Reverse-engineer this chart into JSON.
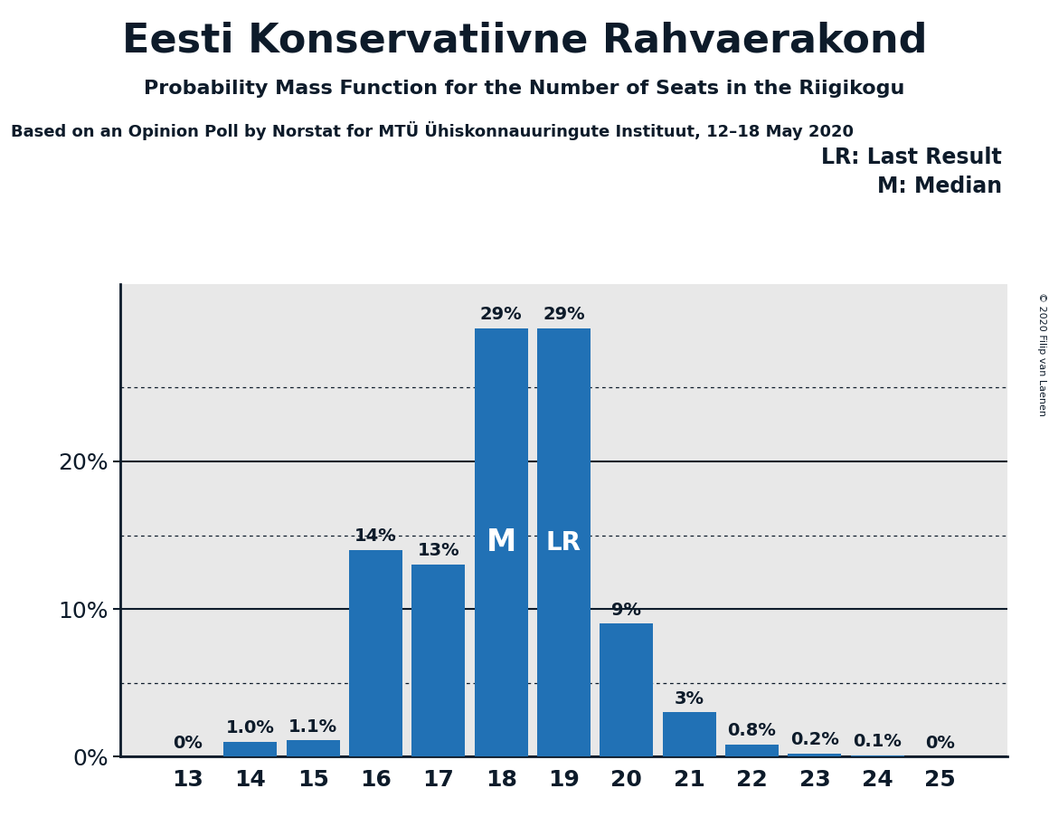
{
  "title": "Eesti Konservatiivne Rahvaerakond",
  "subtitle": "Probability Mass Function for the Number of Seats in the Riigikogu",
  "source": "Based on an Opinion Poll by Norstat for MTÜ Ühiskonnauuringute Instituut, 12–18 May 2020",
  "copyright": "© 2020 Filip van Laenen",
  "categories": [
    13,
    14,
    15,
    16,
    17,
    18,
    19,
    20,
    21,
    22,
    23,
    24,
    25
  ],
  "values": [
    0.0,
    1.0,
    1.1,
    14.0,
    13.0,
    29.0,
    29.0,
    9.0,
    3.0,
    0.8,
    0.2,
    0.1,
    0.0
  ],
  "bar_color": "#2171b5",
  "median_bar_idx": 5,
  "lr_bar_idx": 6,
  "legend_lines": [
    "LR: Last Result",
    "M: Median"
  ],
  "background_color": "#e8e8e8",
  "outer_bg": "#ffffff",
  "title_color": "#0d1b2a",
  "yticks_major": [
    0,
    10,
    20
  ],
  "yticks_minor": [
    5,
    15,
    25
  ],
  "ylim": [
    0,
    32
  ],
  "title_fontsize": 32,
  "subtitle_fontsize": 16,
  "source_fontsize": 13,
  "bar_label_fontsize": 14,
  "axis_tick_fontsize": 18,
  "legend_fontsize": 17,
  "inside_label_M_fontsize": 24,
  "inside_label_LR_fontsize": 20
}
